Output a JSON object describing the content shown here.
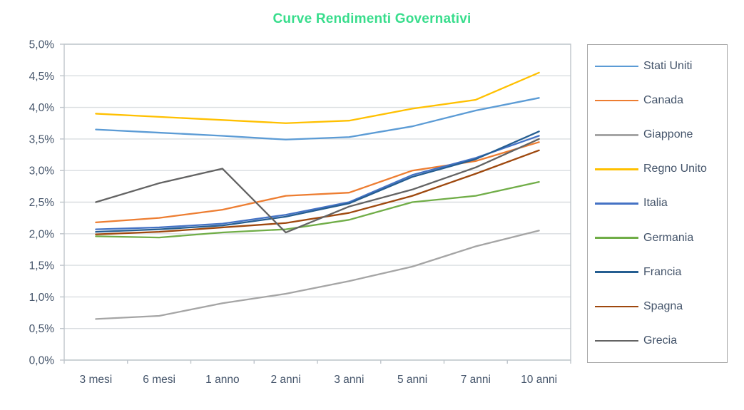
{
  "chart_data": {
    "type": "line",
    "title": "Curve Rendimenti Governativi",
    "title_color": "#38DD8C",
    "categories": [
      "3 mesi",
      "6 mesi",
      "1 anno",
      "2 anni",
      "3 anni",
      "5 anni",
      "7 anni",
      "10 anni"
    ],
    "series": [
      {
        "name": "Stati Uniti",
        "color": "#5B9BD5",
        "values": [
          3.65,
          3.6,
          3.55,
          3.49,
          3.53,
          3.7,
          3.95,
          4.15
        ]
      },
      {
        "name": "Canada",
        "color": "#ED7D31",
        "values": [
          2.18,
          2.25,
          2.38,
          2.6,
          2.65,
          3.0,
          3.15,
          3.45
        ]
      },
      {
        "name": "Giappone",
        "color": "#A5A5A5",
        "values": [
          0.65,
          0.7,
          0.9,
          1.05,
          1.25,
          1.48,
          1.8,
          2.05
        ]
      },
      {
        "name": "Regno Unito",
        "color": "#FFC000",
        "values": [
          3.9,
          3.85,
          3.8,
          3.75,
          3.79,
          3.98,
          4.12,
          4.55
        ]
      },
      {
        "name": "Italia",
        "color": "#4472C4",
        "values": [
          2.07,
          2.1,
          2.16,
          2.3,
          2.5,
          2.93,
          3.2,
          3.55
        ]
      },
      {
        "name": "Germania",
        "color": "#70AD47",
        "values": [
          1.96,
          1.94,
          2.02,
          2.07,
          2.22,
          2.5,
          2.6,
          2.82
        ]
      },
      {
        "name": "Francia",
        "color": "#255E91",
        "values": [
          2.03,
          2.07,
          2.13,
          2.27,
          2.48,
          2.9,
          3.18,
          3.62
        ]
      },
      {
        "name": "Spagna",
        "color": "#9E480E",
        "values": [
          1.99,
          2.03,
          2.1,
          2.17,
          2.33,
          2.6,
          2.95,
          3.32
        ]
      },
      {
        "name": "Grecia",
        "color": "#636363",
        "values": [
          2.5,
          2.8,
          3.03,
          2.02,
          2.43,
          2.7,
          3.05,
          3.5
        ]
      }
    ],
    "y_axis": {
      "min": 0,
      "max": 5,
      "step": 0.5,
      "tick_labels": [
        "0,0%",
        "0,5%",
        "1,0%",
        "1,5%",
        "2,0%",
        "2,5%",
        "3,0%",
        "3,5%",
        "4,0%",
        "4,5%",
        "5,0%"
      ]
    },
    "grid": true,
    "legend_position": "right"
  },
  "colors": {
    "gridline": "#D9DDE0",
    "axis": "#BFC5CB",
    "axis_text": "#44546A",
    "legend_border": "#A6A6A6"
  }
}
